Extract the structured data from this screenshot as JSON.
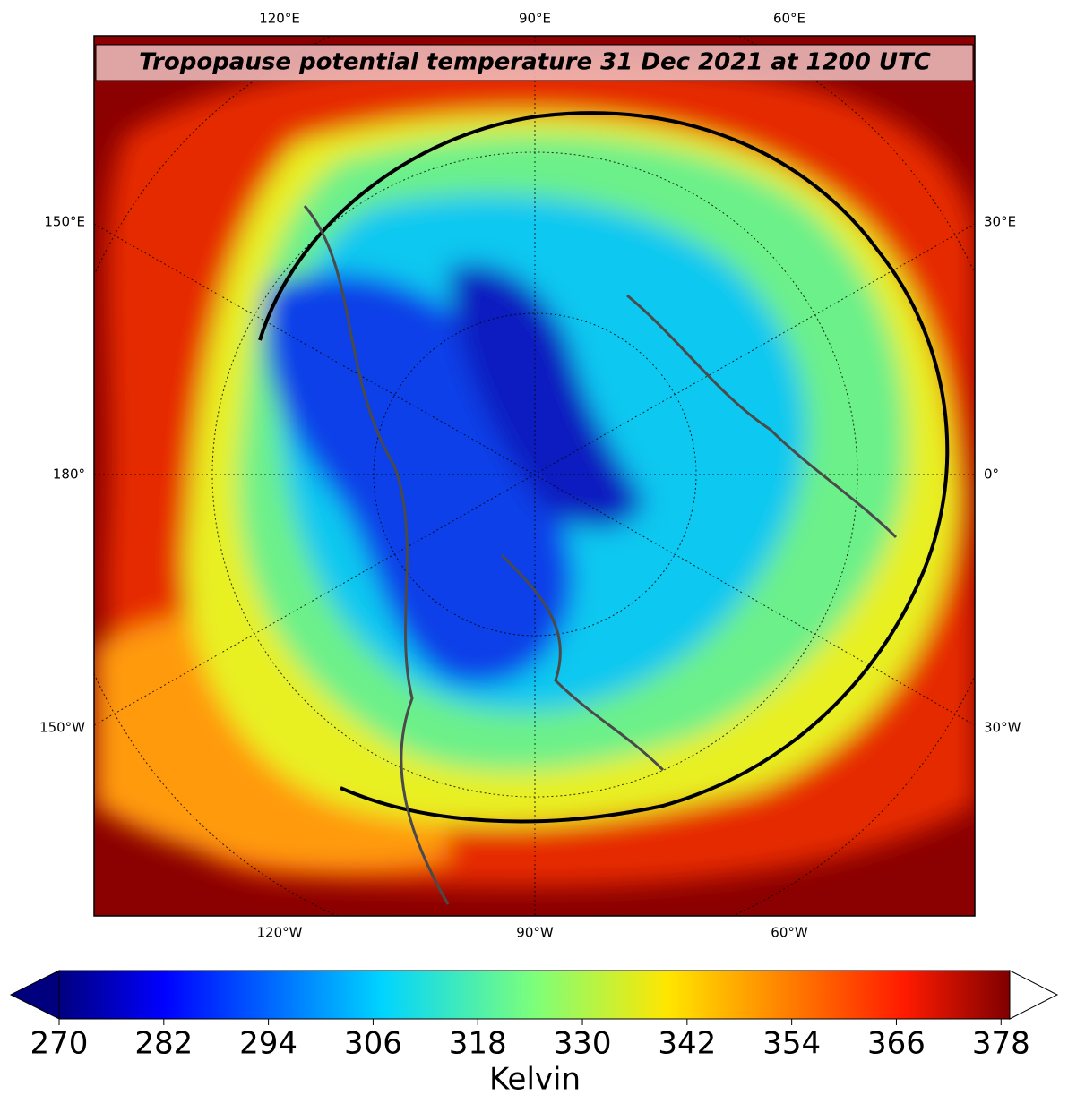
{
  "map": {
    "title": "Tropopause potential temperature 31 Dec 2021 at 1200 UTC",
    "top_labels": [
      "120°E",
      "90°E",
      "60°E"
    ],
    "left_labels": [
      "150°E",
      "180°",
      "150°W"
    ],
    "right_labels": [
      "30°E",
      "0°",
      "30°W"
    ],
    "bottom_labels": [
      "120°W",
      "90°W",
      "60°W"
    ]
  },
  "colorbar": {
    "label": "Kelvin",
    "colormap": "jet",
    "extend": "both",
    "range": [
      270,
      379
    ],
    "ticks": [
      270,
      282,
      294,
      306,
      318,
      330,
      342,
      354,
      366,
      378
    ]
  }
}
